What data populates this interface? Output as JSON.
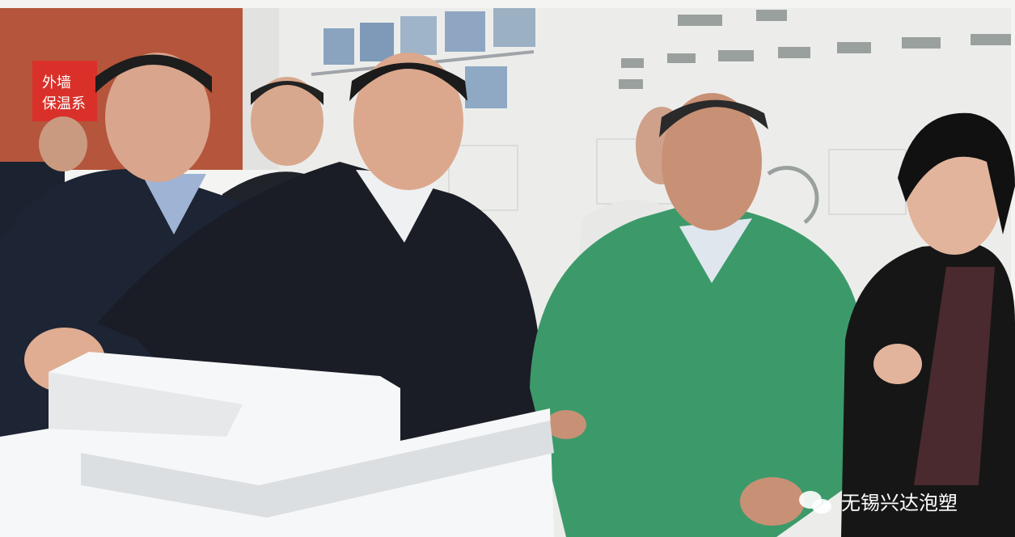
{
  "sign": {
    "lines": [
      "外墙",
      "保温系"
    ]
  },
  "watermark": {
    "text": "无锡兴达泡塑"
  }
}
